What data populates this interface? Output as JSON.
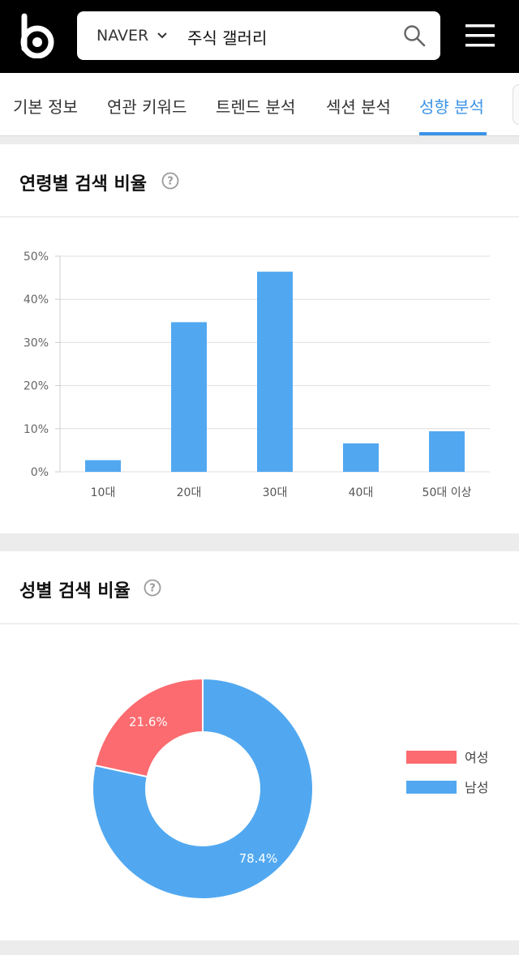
{
  "header": {
    "search_engine": "NAVER",
    "query": "주식 갤러리"
  },
  "tabs": [
    {
      "label": "기본 정보"
    },
    {
      "label": "연관 키워드"
    },
    {
      "label": "트렌드 분석"
    },
    {
      "label": "섹션 분석"
    },
    {
      "label": "성향 분석",
      "active": true
    }
  ],
  "colors": {
    "accent": "#3b93e6",
    "bar": "#51a8f0",
    "female": "#fb6b6f",
    "male": "#51a8f0"
  },
  "age_section": {
    "title": "연령별 검색 비율"
  },
  "gender_section": {
    "title": "성별 검색 비율"
  },
  "chart_data": [
    {
      "type": "bar",
      "categories": [
        "10대",
        "20대",
        "30대",
        "40대",
        "50대 이상"
      ],
      "values": [
        2.7,
        34.7,
        46.4,
        6.6,
        9.4
      ],
      "ylim": [
        0,
        50
      ],
      "yticks": [
        "0%",
        "10%",
        "20%",
        "30%",
        "40%",
        "50%"
      ],
      "grid": true
    },
    {
      "type": "pie",
      "donut": true,
      "labels": [
        "여성",
        "남성"
      ],
      "values": [
        21.6,
        78.4
      ],
      "data_labels": [
        "21.6%",
        "78.4%"
      ],
      "colors": [
        "#fb6b6f",
        "#51a8f0"
      ],
      "legend": "right"
    }
  ]
}
